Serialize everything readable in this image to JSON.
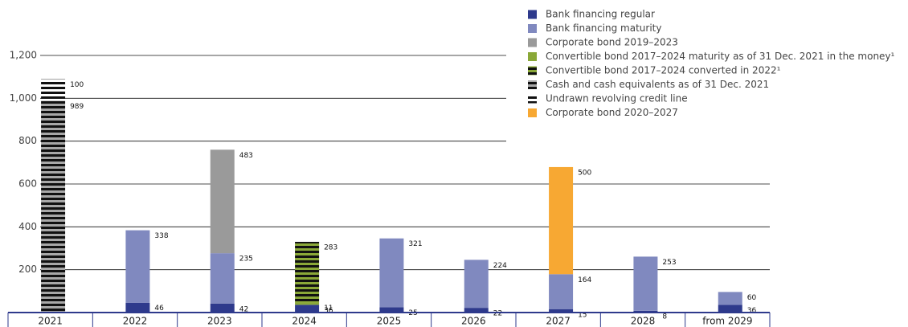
{
  "chart_data": {
    "type": "stacked_bar",
    "categories": [
      "2021",
      "2022",
      "2023",
      "2024",
      "2025",
      "2026",
      "2027",
      "2028",
      "from 2029"
    ],
    "series": [
      {
        "name": "Bank financing regular",
        "color": "#2e3a8c",
        "hatch": false,
        "values": [
          null,
          46,
          42,
          36,
          25,
          22,
          15,
          8,
          36
        ]
      },
      {
        "name": "Bank financing maturity",
        "color": "#8089bf",
        "hatch": false,
        "values": [
          null,
          338,
          235,
          null,
          321,
          224,
          164,
          253,
          60
        ]
      },
      {
        "name": "Corporate bond 2019–2023",
        "color": "#9a9a9a",
        "hatch": false,
        "values": [
          null,
          null,
          483,
          null,
          null,
          null,
          null,
          null,
          null
        ]
      },
      {
        "name": "Convertible bond 2017–2024 maturity as of 31 Dec. 2021 in the money¹",
        "color": "#8aa838",
        "hatch": false,
        "values": [
          null,
          null,
          null,
          11,
          null,
          null,
          null,
          null,
          null
        ]
      },
      {
        "name": "Convertible bond 2017–2024 converted in 2022¹",
        "color": "#8aa838",
        "hatch": true,
        "values": [
          null,
          null,
          null,
          283,
          null,
          null,
          null,
          null,
          null
        ]
      },
      {
        "name": "Cash and cash equivalents as of 31 Dec. 2021",
        "color": "#a8a8a8",
        "hatch": true,
        "values": [
          989,
          null,
          null,
          null,
          null,
          null,
          null,
          null,
          null
        ]
      },
      {
        "name": "Undrawn revolving credit line",
        "color": "#ffffff",
        "hatch": true,
        "values": [
          100,
          null,
          null,
          null,
          null,
          null,
          null,
          null,
          null
        ]
      },
      {
        "name": "Corporate bond 2020–2027",
        "color": "#f7a833",
        "hatch": false,
        "values": [
          null,
          null,
          null,
          null,
          null,
          null,
          500,
          null,
          null
        ]
      }
    ],
    "ylim": [
      0,
      1200
    ],
    "yticks": [
      200,
      400,
      600,
      800,
      {
        "value": 1000,
        "label": "1,000"
      },
      {
        "value": 1200,
        "label": "1,200"
      }
    ],
    "grid": true
  }
}
